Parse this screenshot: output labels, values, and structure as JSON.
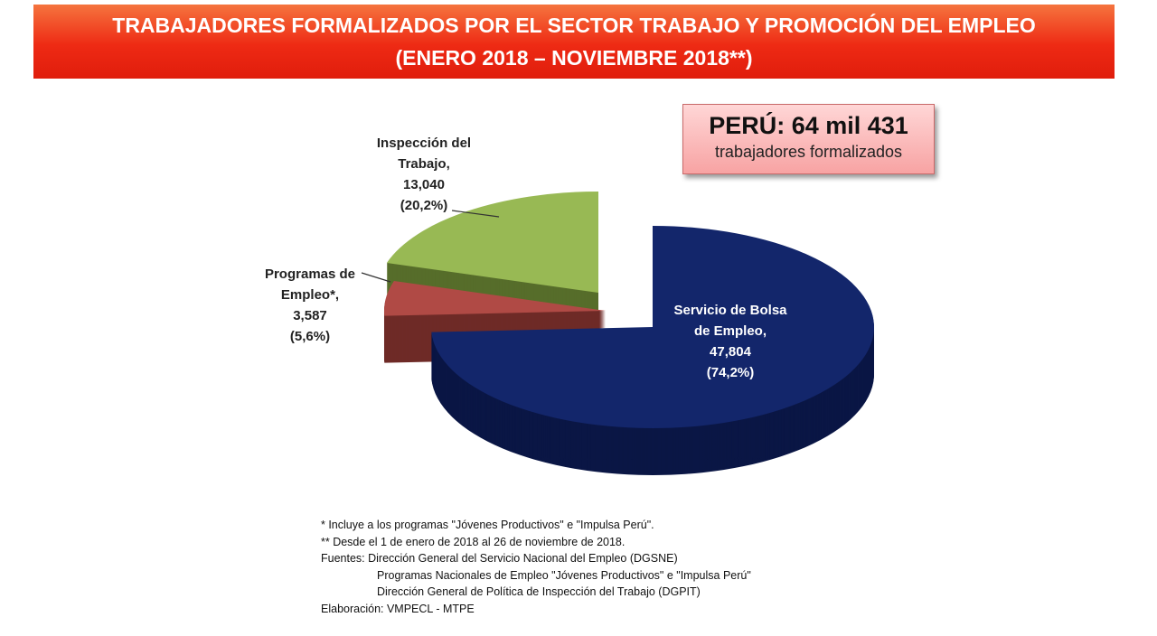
{
  "title_line1": "TRABAJADORES FORMALIZADOS POR EL SECTOR TRABAJO Y PROMOCIÓN DEL EMPLEO",
  "title_line2": "(ENERO 2018 – NOVIEMBRE 2018**)",
  "total": {
    "main": "PERÚ: 64 mil 431",
    "sub": "trabajadores formalizados"
  },
  "chart_data": {
    "type": "pie",
    "style": "3d-exploded",
    "slices": [
      {
        "label": [
          "Servicio de Bolsa",
          "de Empleo,"
        ],
        "value": 47804,
        "value_text": "47,804",
        "pct_text": "(74,2%)",
        "percent": 74.2,
        "color": "#13266b",
        "side": "#0a1645"
      },
      {
        "label": [
          "Programas de",
          "Empleo*,"
        ],
        "value": 3587,
        "value_text": "3,587",
        "pct_text": "(5,6%)",
        "percent": 5.6,
        "color": "#b04a45",
        "side": "#6e2a27"
      },
      {
        "label": [
          "Inspección del",
          "Trabajo,"
        ],
        "value": 13040,
        "value_text": "13,040",
        "pct_text": "(20,2%)",
        "percent": 20.2,
        "color": "#98b954",
        "side": "#566d2a"
      }
    ]
  },
  "notes": [
    "* Incluye a los programas \"Jóvenes Productivos\" e \"Impulsa Perú\".",
    "** Desde el 1 de enero de 2018 al 26 de noviembre de 2018.",
    "Fuentes: Dirección General del Servicio Nacional del Empleo (DGSNE)",
    "Programas Nacionales de Empleo \"Jóvenes Productivos\" e \"Impulsa Perú\"",
    "Dirección General de Política de Inspección del Trabajo (DGPIT)",
    "Elaboración: VMPECL - MTPE"
  ]
}
